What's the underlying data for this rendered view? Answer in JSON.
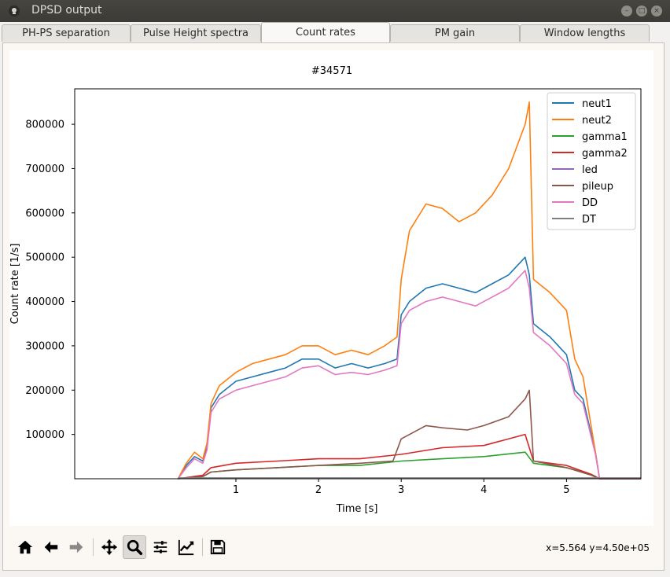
{
  "window": {
    "title": "DPSD output"
  },
  "tabs": [
    {
      "label": "PH-PS separation",
      "active": false
    },
    {
      "label": "Pulse Height spectra",
      "active": false
    },
    {
      "label": "Count rates",
      "active": true
    },
    {
      "label": "PM gain",
      "active": false
    },
    {
      "label": "Window lengths",
      "active": false
    }
  ],
  "toolbar": {
    "buttons": [
      "home-icon",
      "back-icon",
      "forward-icon",
      "pan-icon",
      "zoom-icon",
      "subplots-icon",
      "edit-axis-icon",
      "save-icon"
    ],
    "coords_text": "x=5.564 y=4.50e+05"
  },
  "chart_data": {
    "type": "line",
    "title": "#34571",
    "xlabel": "Time [s]",
    "ylabel": "Count rate [1/s]",
    "xlim": [
      -0.95,
      5.9
    ],
    "ylim": [
      0,
      880000
    ],
    "xticks": [
      1,
      2,
      3,
      4,
      5
    ],
    "yticks": [
      100000,
      200000,
      300000,
      400000,
      500000,
      600000,
      700000,
      800000
    ],
    "grid": false,
    "legend_position": "top-right",
    "series": [
      {
        "name": "neut1",
        "color": "#1f77b4",
        "x": [
          0.3,
          0.4,
          0.5,
          0.6,
          0.65,
          0.7,
          0.8,
          1.0,
          1.2,
          1.4,
          1.6,
          1.8,
          2.0,
          2.2,
          2.4,
          2.6,
          2.8,
          2.95,
          3.0,
          3.1,
          3.3,
          3.5,
          3.7,
          3.9,
          4.1,
          4.3,
          4.5,
          4.55,
          4.6,
          4.8,
          5.0,
          5.1,
          5.2,
          5.35,
          5.4,
          5.9
        ],
        "y": [
          0,
          30000,
          50000,
          40000,
          70000,
          160000,
          190000,
          220000,
          230000,
          240000,
          250000,
          270000,
          270000,
          250000,
          260000,
          250000,
          260000,
          270000,
          370000,
          400000,
          430000,
          440000,
          430000,
          420000,
          440000,
          460000,
          500000,
          460000,
          350000,
          320000,
          280000,
          200000,
          180000,
          60000,
          0,
          0
        ]
      },
      {
        "name": "neut2",
        "color": "#ff7f0e",
        "x": [
          0.3,
          0.4,
          0.5,
          0.6,
          0.65,
          0.7,
          0.8,
          1.0,
          1.2,
          1.4,
          1.6,
          1.8,
          2.0,
          2.2,
          2.4,
          2.6,
          2.8,
          2.95,
          3.0,
          3.1,
          3.3,
          3.5,
          3.7,
          3.9,
          4.1,
          4.3,
          4.5,
          4.55,
          4.6,
          4.8,
          5.0,
          5.1,
          5.2,
          5.35,
          5.4,
          5.9
        ],
        "y": [
          0,
          35000,
          60000,
          45000,
          80000,
          170000,
          210000,
          240000,
          260000,
          270000,
          280000,
          300000,
          300000,
          280000,
          290000,
          280000,
          300000,
          320000,
          450000,
          560000,
          620000,
          610000,
          580000,
          600000,
          640000,
          700000,
          800000,
          850000,
          450000,
          420000,
          380000,
          270000,
          230000,
          60000,
          0,
          0
        ]
      },
      {
        "name": "gamma1",
        "color": "#2ca02c",
        "x": [
          0.3,
          0.6,
          0.7,
          1.0,
          1.5,
          2.0,
          2.5,
          3.0,
          3.5,
          4.0,
          4.5,
          4.6,
          5.0,
          5.3,
          5.4,
          5.9
        ],
        "y": [
          0,
          5000,
          15000,
          20000,
          25000,
          30000,
          30000,
          40000,
          45000,
          50000,
          60000,
          35000,
          25000,
          10000,
          0,
          0
        ]
      },
      {
        "name": "gamma2",
        "color": "#d62728",
        "x": [
          0.3,
          0.6,
          0.7,
          1.0,
          1.5,
          2.0,
          2.5,
          3.0,
          3.5,
          4.0,
          4.5,
          4.6,
          5.0,
          5.3,
          5.4,
          5.9
        ],
        "y": [
          0,
          8000,
          25000,
          35000,
          40000,
          45000,
          45000,
          55000,
          70000,
          75000,
          100000,
          40000,
          30000,
          10000,
          0,
          0
        ]
      },
      {
        "name": "led",
        "color": "#9467bd",
        "x": [
          0.3,
          5.9
        ],
        "y": [
          1000,
          1000
        ]
      },
      {
        "name": "pileup",
        "color": "#8c564b",
        "x": [
          0.3,
          0.6,
          0.7,
          1.0,
          1.5,
          2.0,
          2.5,
          2.9,
          3.0,
          3.3,
          3.5,
          3.8,
          4.0,
          4.3,
          4.5,
          4.55,
          4.6,
          5.0,
          5.3,
          5.4,
          5.9
        ],
        "y": [
          0,
          5000,
          15000,
          20000,
          25000,
          30000,
          35000,
          40000,
          90000,
          120000,
          115000,
          110000,
          120000,
          140000,
          180000,
          200000,
          40000,
          25000,
          8000,
          0,
          0
        ]
      },
      {
        "name": "DD",
        "color": "#e377c2",
        "x": [
          0.3,
          0.4,
          0.5,
          0.6,
          0.65,
          0.7,
          0.8,
          1.0,
          1.2,
          1.4,
          1.6,
          1.8,
          2.0,
          2.2,
          2.4,
          2.6,
          2.8,
          2.95,
          3.0,
          3.1,
          3.3,
          3.5,
          3.7,
          3.9,
          4.1,
          4.3,
          4.5,
          4.55,
          4.6,
          4.8,
          5.0,
          5.1,
          5.2,
          5.35,
          5.4,
          5.9
        ],
        "y": [
          0,
          25000,
          45000,
          35000,
          65000,
          150000,
          180000,
          200000,
          210000,
          220000,
          230000,
          250000,
          255000,
          235000,
          240000,
          235000,
          245000,
          255000,
          350000,
          380000,
          400000,
          410000,
          400000,
          390000,
          410000,
          430000,
          470000,
          430000,
          330000,
          300000,
          260000,
          190000,
          170000,
          55000,
          0,
          0
        ]
      },
      {
        "name": "DT",
        "color": "#7f7f7f",
        "x": [
          0.3,
          5.9
        ],
        "y": [
          2000,
          2000
        ]
      }
    ]
  }
}
